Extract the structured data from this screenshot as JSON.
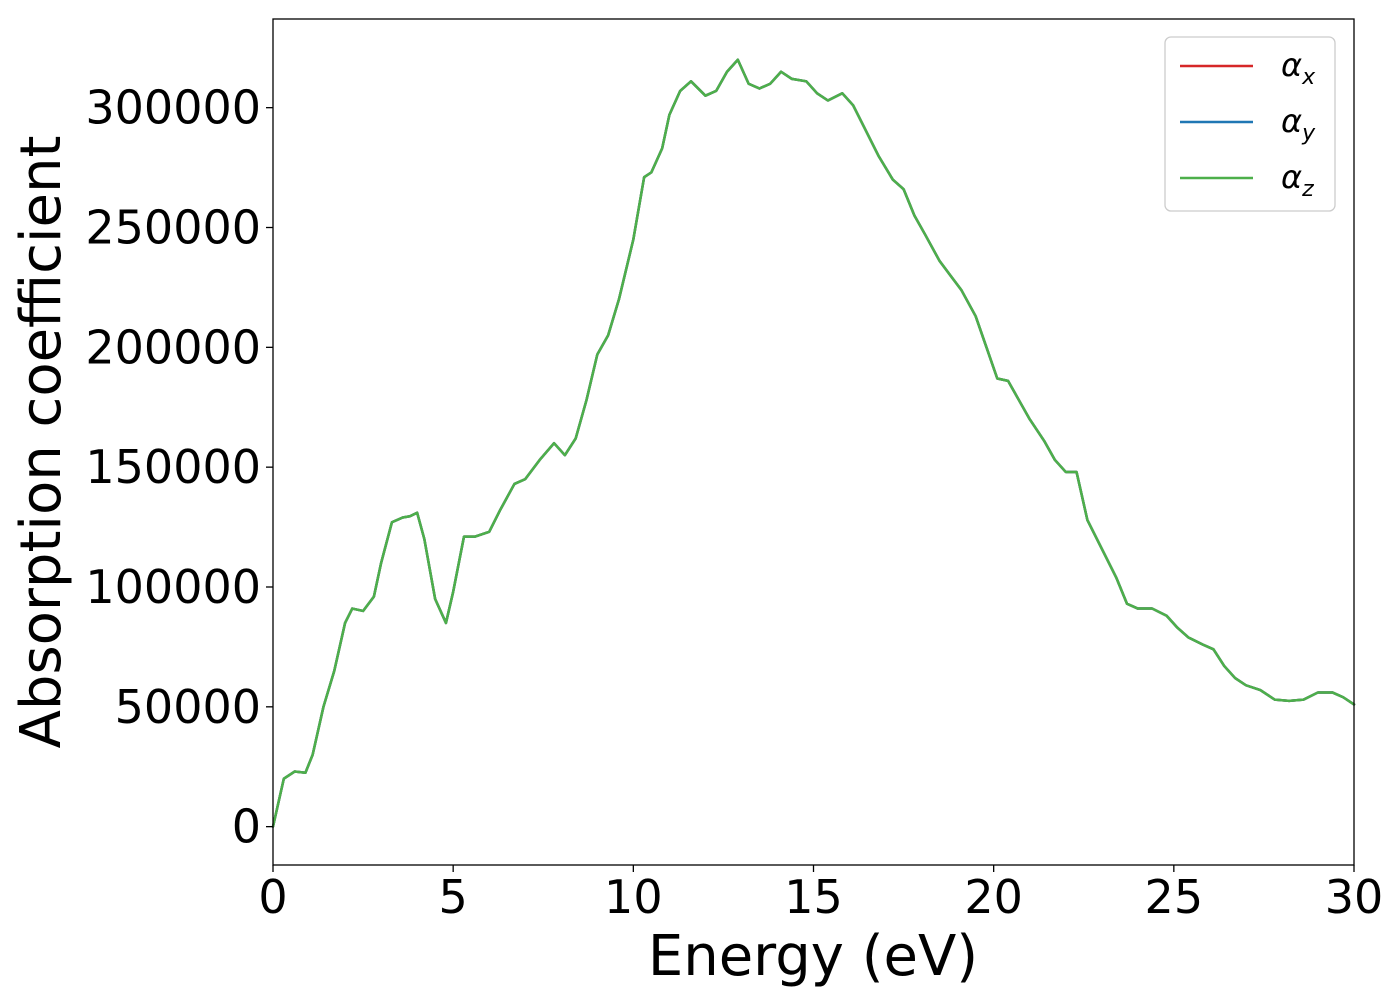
{
  "chart_data": {
    "type": "line",
    "xlabel": "Energy (eV)",
    "ylabel": "Absorption coefficient",
    "xlim": [
      0,
      30
    ],
    "ylim": [
      -16000,
      337000
    ],
    "xticks": [
      0,
      5,
      10,
      15,
      20,
      25,
      30
    ],
    "yticks": [
      0,
      50000,
      100000,
      150000,
      200000,
      250000,
      300000
    ],
    "xtick_labels": [
      "0",
      "5",
      "10",
      "15",
      "20",
      "25",
      "30"
    ],
    "ytick_labels": [
      "0",
      "50000",
      "100000",
      "150000",
      "200000",
      "250000",
      "300000"
    ],
    "grid": false,
    "legend_position": "top-right",
    "series": [
      {
        "name": "α",
        "subscript": "x",
        "color": "#d62728",
        "x": [
          0,
          0.3,
          0.6,
          0.9,
          1.1,
          1.4,
          1.7,
          2.0,
          2.2,
          2.5,
          2.8,
          3.0,
          3.3,
          3.6,
          3.8,
          4.0,
          4.2,
          4.5,
          4.8,
          5.0,
          5.3,
          5.6,
          6.0,
          6.3,
          6.7,
          7.0,
          7.4,
          7.8,
          8.1,
          8.4,
          8.7,
          9.0,
          9.3,
          9.6,
          10.0,
          10.3,
          10.5,
          10.8,
          11.0,
          11.3,
          11.6,
          12.0,
          12.3,
          12.6,
          12.9,
          13.2,
          13.5,
          13.8,
          14.1,
          14.4,
          14.8,
          15.1,
          15.4,
          15.8,
          16.1,
          16.4,
          16.8,
          17.2,
          17.5,
          17.8,
          18.1,
          18.5,
          18.8,
          19.1,
          19.5,
          19.8,
          20.1,
          20.4,
          20.7,
          21.0,
          21.4,
          21.7,
          22.0,
          22.3,
          22.6,
          23.0,
          23.4,
          23.7,
          24.0,
          24.4,
          24.8,
          25.1,
          25.4,
          25.8,
          26.1,
          26.4,
          26.7,
          27.0,
          27.4,
          27.8,
          28.2,
          28.6,
          29.0,
          29.4,
          29.7,
          30.0
        ],
        "y": [
          0,
          20000,
          23000,
          22500,
          30000,
          50000,
          65000,
          85000,
          91000,
          90000,
          96000,
          110000,
          127000,
          129000,
          129500,
          131000,
          120000,
          95000,
          85000,
          98000,
          121000,
          121000,
          123000,
          132000,
          143000,
          145000,
          153000,
          160000,
          155000,
          162000,
          178000,
          197000,
          205000,
          220000,
          245000,
          271000,
          273000,
          283000,
          297000,
          307000,
          311000,
          305000,
          307000,
          315000,
          320000,
          310000,
          308000,
          310000,
          315000,
          312000,
          311000,
          306000,
          303000,
          306000,
          301000,
          292000,
          280000,
          270000,
          266000,
          255000,
          247000,
          236000,
          230000,
          224000,
          213000,
          200000,
          187000,
          186000,
          178000,
          170000,
          161000,
          153000,
          148000,
          148000,
          128000,
          116000,
          104000,
          93000,
          91000,
          91000,
          88000,
          83000,
          79000,
          76000,
          74000,
          67000,
          62000,
          59000,
          57000,
          53000,
          52500,
          53000,
          56000,
          56000,
          54000,
          51000
        ]
      },
      {
        "name": "α",
        "subscript": "y",
        "color": "#1f77b4",
        "x": [
          0,
          0.3,
          0.6,
          0.9,
          1.1,
          1.4,
          1.7,
          2.0,
          2.2,
          2.5,
          2.8,
          3.0,
          3.3,
          3.6,
          3.8,
          4.0,
          4.2,
          4.5,
          4.8,
          5.0,
          5.3,
          5.6,
          6.0,
          6.3,
          6.7,
          7.0,
          7.4,
          7.8,
          8.1,
          8.4,
          8.7,
          9.0,
          9.3,
          9.6,
          10.0,
          10.3,
          10.5,
          10.8,
          11.0,
          11.3,
          11.6,
          12.0,
          12.3,
          12.6,
          12.9,
          13.2,
          13.5,
          13.8,
          14.1,
          14.4,
          14.8,
          15.1,
          15.4,
          15.8,
          16.1,
          16.4,
          16.8,
          17.2,
          17.5,
          17.8,
          18.1,
          18.5,
          18.8,
          19.1,
          19.5,
          19.8,
          20.1,
          20.4,
          20.7,
          21.0,
          21.4,
          21.7,
          22.0,
          22.3,
          22.6,
          23.0,
          23.4,
          23.7,
          24.0,
          24.4,
          24.8,
          25.1,
          25.4,
          25.8,
          26.1,
          26.4,
          26.7,
          27.0,
          27.4,
          27.8,
          28.2,
          28.6,
          29.0,
          29.4,
          29.7,
          30.0
        ],
        "y": [
          0,
          20000,
          23000,
          22500,
          30000,
          50000,
          65000,
          85000,
          91000,
          90000,
          96000,
          110000,
          127000,
          129000,
          129500,
          131000,
          120000,
          95000,
          85000,
          98000,
          121000,
          121000,
          123000,
          132000,
          143000,
          145000,
          153000,
          160000,
          155000,
          162000,
          178000,
          197000,
          205000,
          220000,
          245000,
          271000,
          273000,
          283000,
          297000,
          307000,
          311000,
          305000,
          307000,
          315000,
          320000,
          310000,
          308000,
          310000,
          315000,
          312000,
          311000,
          306000,
          303000,
          306000,
          301000,
          292000,
          280000,
          270000,
          266000,
          255000,
          247000,
          236000,
          230000,
          224000,
          213000,
          200000,
          187000,
          186000,
          178000,
          170000,
          161000,
          153000,
          148000,
          148000,
          128000,
          116000,
          104000,
          93000,
          91000,
          91000,
          88000,
          83000,
          79000,
          76000,
          74000,
          67000,
          62000,
          59000,
          57000,
          53000,
          52500,
          53000,
          56000,
          56000,
          54000,
          51000
        ]
      },
      {
        "name": "α",
        "subscript": "z",
        "color": "#4daf4a",
        "x": [
          0,
          0.3,
          0.6,
          0.9,
          1.1,
          1.4,
          1.7,
          2.0,
          2.2,
          2.5,
          2.8,
          3.0,
          3.3,
          3.6,
          3.8,
          4.0,
          4.2,
          4.5,
          4.8,
          5.0,
          5.3,
          5.6,
          6.0,
          6.3,
          6.7,
          7.0,
          7.4,
          7.8,
          8.1,
          8.4,
          8.7,
          9.0,
          9.3,
          9.6,
          10.0,
          10.3,
          10.5,
          10.8,
          11.0,
          11.3,
          11.6,
          12.0,
          12.3,
          12.6,
          12.9,
          13.2,
          13.5,
          13.8,
          14.1,
          14.4,
          14.8,
          15.1,
          15.4,
          15.8,
          16.1,
          16.4,
          16.8,
          17.2,
          17.5,
          17.8,
          18.1,
          18.5,
          18.8,
          19.1,
          19.5,
          19.8,
          20.1,
          20.4,
          20.7,
          21.0,
          21.4,
          21.7,
          22.0,
          22.3,
          22.6,
          23.0,
          23.4,
          23.7,
          24.0,
          24.4,
          24.8,
          25.1,
          25.4,
          25.8,
          26.1,
          26.4,
          26.7,
          27.0,
          27.4,
          27.8,
          28.2,
          28.6,
          29.0,
          29.4,
          29.7,
          30.0
        ],
        "y": [
          0,
          20000,
          23000,
          22500,
          30000,
          50000,
          65000,
          85000,
          91000,
          90000,
          96000,
          110000,
          127000,
          129000,
          129500,
          131000,
          120000,
          95000,
          85000,
          98000,
          121000,
          121000,
          123000,
          132000,
          143000,
          145000,
          153000,
          160000,
          155000,
          162000,
          178000,
          197000,
          205000,
          220000,
          245000,
          271000,
          273000,
          283000,
          297000,
          307000,
          311000,
          305000,
          307000,
          315000,
          320000,
          310000,
          308000,
          310000,
          315000,
          312000,
          311000,
          306000,
          303000,
          306000,
          301000,
          292000,
          280000,
          270000,
          266000,
          255000,
          247000,
          236000,
          230000,
          224000,
          213000,
          200000,
          187000,
          186000,
          178000,
          170000,
          161000,
          153000,
          148000,
          148000,
          128000,
          116000,
          104000,
          93000,
          91000,
          91000,
          88000,
          83000,
          79000,
          76000,
          74000,
          67000,
          62000,
          59000,
          57000,
          53000,
          52500,
          53000,
          56000,
          56000,
          54000,
          51000
        ]
      }
    ]
  }
}
